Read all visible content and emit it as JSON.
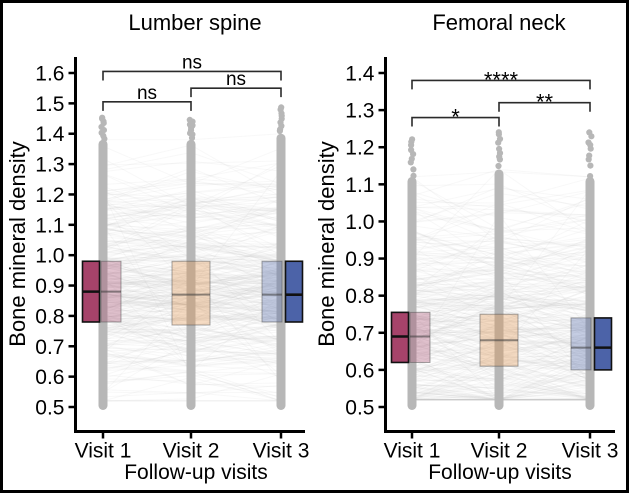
{
  "figure": {
    "description": "Two-panel paired box plots of bone mineral density across follow-up visits with individual trajectories and significance brackets",
    "panels_count": 2
  },
  "style": {
    "background": "#ffffff",
    "frame_border": "#000000",
    "point_color": "#b7b7b7",
    "trajectory_color": "#c9c9c9",
    "axis_color": "#000000",
    "bracket_color": "#2b2b2b",
    "text_color": "#000000",
    "visit1_color": "#a6436a",
    "visit2_color": "#df8f44",
    "visit3_color": "#4c63a8"
  },
  "chart_data": [
    {
      "type": "boxplot",
      "title": "Lumber spine",
      "xlabel": "Follow-up visits",
      "ylabel": "Bone mineral density",
      "categories": [
        "Visit 1",
        "Visit 2",
        "Visit 3"
      ],
      "ylim": [
        0.5,
        1.65
      ],
      "yticks": [
        "1.6",
        "1.5",
        "1.4",
        "1.3",
        "1.2",
        "1.1",
        "1.0",
        "0.9",
        "0.8",
        "0.7",
        "0.6",
        "0.5"
      ],
      "grid": false,
      "legend": "none",
      "boxes": [
        {
          "category": "Visit 1",
          "q1": 0.78,
          "median": 0.88,
          "q3": 0.98,
          "color": "#a6436a",
          "solid_side": "left",
          "points_min": 0.5,
          "points_dense_max": 1.38,
          "points_max": 1.46
        },
        {
          "category": "Visit 2",
          "q1": 0.77,
          "median": 0.87,
          "q3": 0.98,
          "color": "#df8f44",
          "solid_side": "none",
          "points_min": 0.5,
          "points_dense_max": 1.38,
          "points_max": 1.45
        },
        {
          "category": "Visit 3",
          "q1": 0.78,
          "median": 0.87,
          "q3": 0.98,
          "color": "#4c63a8",
          "solid_side": "right",
          "points_min": 0.5,
          "points_dense_max": 1.4,
          "points_max": 1.49
        }
      ],
      "significance": [
        {
          "pair": [
            0,
            1
          ],
          "label": "ns",
          "y": 1.505
        },
        {
          "pair": [
            1,
            2
          ],
          "label": "ns",
          "y": 1.55
        },
        {
          "pair": [
            0,
            2
          ],
          "label": "ns",
          "y": 1.605
        }
      ]
    },
    {
      "type": "boxplot",
      "title": "Femoral neck",
      "xlabel": "Follow-up visits",
      "ylabel": "Bone mineral density",
      "categories": [
        "Visit 1",
        "Visit 2",
        "Visit 3"
      ],
      "ylim": [
        0.5,
        1.45
      ],
      "yticks": [
        "1.4",
        "1.3",
        "1.2",
        "1.1",
        "1.0",
        "0.9",
        "0.8",
        "0.7",
        "0.6",
        "0.5"
      ],
      "grid": false,
      "legend": "none",
      "boxes": [
        {
          "category": "Visit 1",
          "q1": 0.62,
          "median": 0.69,
          "q3": 0.755,
          "color": "#a6436a",
          "solid_side": "left",
          "points_min": 0.5,
          "points_dense_max": 1.12,
          "points_max": 1.23
        },
        {
          "category": "Visit 2",
          "q1": 0.61,
          "median": 0.68,
          "q3": 0.75,
          "color": "#df8f44",
          "solid_side": "none",
          "points_min": 0.5,
          "points_dense_max": 1.14,
          "points_max": 1.25
        },
        {
          "category": "Visit 3",
          "q1": 0.6,
          "median": 0.66,
          "q3": 0.74,
          "color": "#4c63a8",
          "solid_side": "right",
          "points_min": 0.5,
          "points_dense_max": 1.12,
          "points_max": 1.25
        }
      ],
      "significance": [
        {
          "pair": [
            0,
            1
          ],
          "label": "*",
          "y": 1.28
        },
        {
          "pair": [
            1,
            2
          ],
          "label": "**",
          "y": 1.32
        },
        {
          "pair": [
            0,
            2
          ],
          "label": "****",
          "y": 1.38
        }
      ]
    }
  ]
}
